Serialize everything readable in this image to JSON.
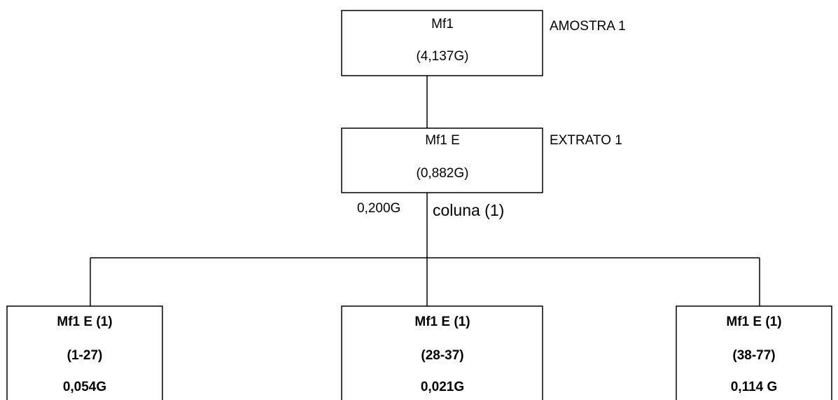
{
  "nodes": [
    {
      "lines": [
        "Mf1",
        "(4,137G)"
      ],
      "label": "AMOSTRA 1"
    },
    {
      "lines": [
        "Mf1 E",
        "(0,882G)"
      ],
      "label": "EXTRATO 1"
    },
    {
      "lines": [
        "Mf1 E (1)",
        "(1-27)",
        "0,054G"
      ]
    },
    {
      "lines": [
        "Mf1 E (1)",
        "(28-37)",
        "0,021G"
      ]
    },
    {
      "lines": [
        "Mf1 E (1)",
        "(38-77)",
        "0,114 G"
      ]
    }
  ],
  "edge": {
    "amount": "0,200G",
    "label": "coluna (1)"
  }
}
